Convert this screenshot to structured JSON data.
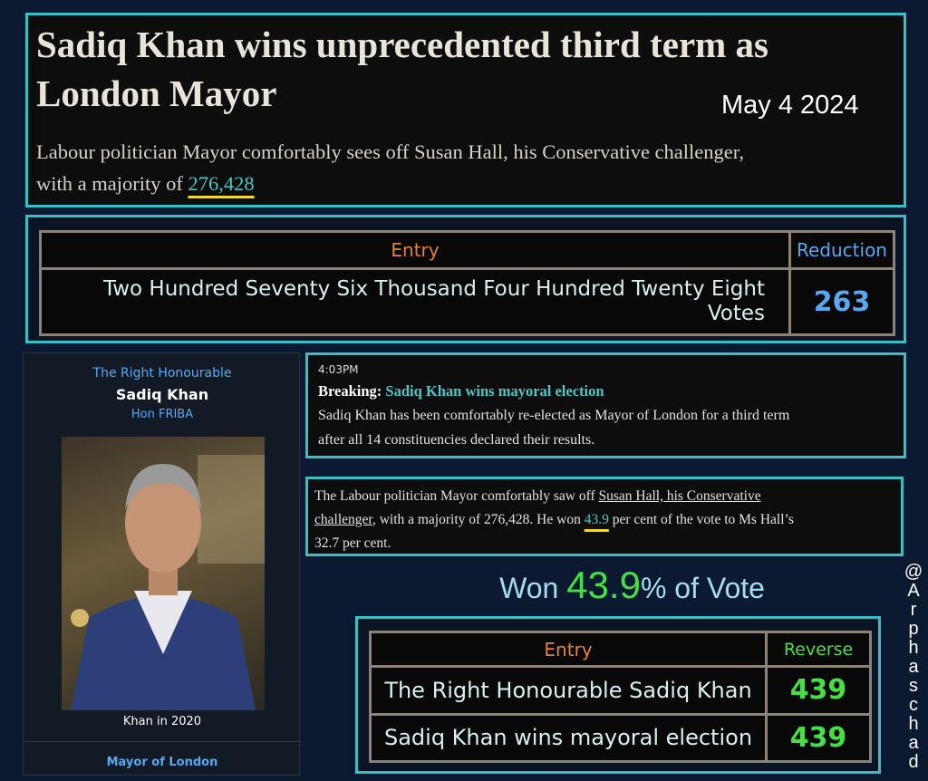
{
  "header": {
    "title_lines": [
      "Sadiq Khan wins unprecedented third term as",
      "London Mayor"
    ],
    "date": "May 4 2024",
    "subtitle_lines": [
      [
        {
          "text": "Labour politician Mayor comfortably sees off Susan Hall, his Conservative challenger,"
        }
      ],
      [
        {
          "text": "with a majority of "
        },
        {
          "text": "276,428",
          "style": "highlight"
        }
      ]
    ]
  },
  "table1": {
    "headers": [
      "Entry",
      "Reduction"
    ],
    "entry_lines": [
      "Two Hundred Seventy Six Thousand Four Hundred Twenty Eight",
      "Votes"
    ],
    "value": "263"
  },
  "profile": {
    "honorific": "The Right Honourable",
    "name": "Sadiq Khan",
    "postnominal": "Hon FRIBA",
    "caption": "Khan in 2020",
    "office": "Mayor of London"
  },
  "breaking": {
    "time": "4:03PM",
    "label": "Breaking: ",
    "headline": "Sadiq Khan wins mayoral election",
    "body_lines": [
      "Sadiq Khan has been comfortably re-elected as Mayor of London for a third term",
      "after all 14 constituencies declared their results."
    ]
  },
  "paragraph": {
    "lines": [
      [
        {
          "text": "The Labour politician Mayor comfortably saw off "
        },
        {
          "text": "Susan Hall, his Conservative",
          "style": "link"
        }
      ],
      [
        {
          "text": "challenger",
          "style": "link"
        },
        {
          "text": ", with a majority of 276,428. He won "
        },
        {
          "text": "43.9",
          "style": "highlight"
        },
        {
          "text": " per cent of the vote to Ms Hall’s"
        }
      ],
      [
        {
          "text": "32.7 per cent."
        }
      ]
    ]
  },
  "won": {
    "before": "Won ",
    "number": "43.9",
    "after": "% of Vote"
  },
  "table2": {
    "headers": [
      "Entry",
      "Reverse"
    ],
    "rows": [
      [
        "The Right Honourable Sadiq Khan",
        "439"
      ],
      [
        "Sadiq Khan wins mayoral election",
        "439"
      ]
    ]
  },
  "watermark": "@Arphaschad"
}
